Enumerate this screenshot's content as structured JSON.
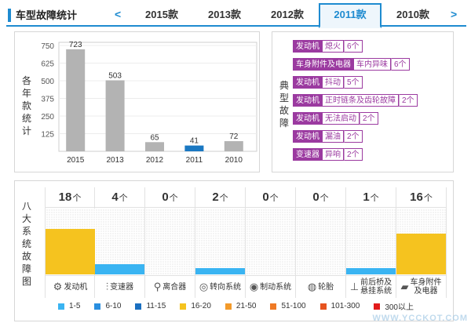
{
  "header": {
    "title": "车型故障统计",
    "prev_arrow": "<",
    "next_arrow": ">",
    "tabs": [
      {
        "label": "2015款",
        "active": false
      },
      {
        "label": "2013款",
        "active": false
      },
      {
        "label": "2012款",
        "active": false
      },
      {
        "label": "2011款",
        "active": true
      },
      {
        "label": "2010款",
        "active": false
      }
    ]
  },
  "chart_panel": {
    "side_label": [
      "各",
      "年",
      "款",
      "统",
      "计"
    ]
  },
  "chart_data": {
    "type": "bar",
    "categories": [
      "2015",
      "2013",
      "2012",
      "2011",
      "2010"
    ],
    "values": [
      723,
      503,
      65,
      41,
      72
    ],
    "highlight_index": 3,
    "highlight_color": "#1a78c2",
    "bar_color": "#b3b3b3",
    "yticks": [
      125,
      250,
      375,
      500,
      625,
      750
    ],
    "ylim": [
      0,
      750
    ],
    "title": "",
    "xlabel": "",
    "ylabel": "各年款统计"
  },
  "typical_panel": {
    "side_label": [
      "典",
      "型",
      "故",
      "障"
    ],
    "items": [
      {
        "tag": "发动机",
        "desc": "熄火",
        "count": "6个"
      },
      {
        "tag": "车身附件及电器",
        "desc": "车内异味",
        "count": "6个"
      },
      {
        "tag": "发动机",
        "desc": "抖动",
        "count": "5个"
      },
      {
        "tag": "发动机",
        "desc": "正时链条及齿轮故障",
        "count": "2个"
      },
      {
        "tag": "发动机",
        "desc": "无法启动",
        "count": "2个"
      },
      {
        "tag": "发动机",
        "desc": "漏油",
        "count": "2个"
      },
      {
        "tag": "变速器",
        "desc": "异响",
        "count": "2个"
      }
    ]
  },
  "systems_panel": {
    "side_label": [
      "八",
      "大",
      "系",
      "统",
      "故",
      "障",
      "图"
    ],
    "unit": "个",
    "systems": [
      {
        "count": "18",
        "value": 18,
        "name": "发动机",
        "icon": "engine-icon",
        "glyph": "⚙",
        "color": "#f5c31f"
      },
      {
        "count": "4",
        "value": 4,
        "name": "变速器",
        "icon": "gearbox-icon",
        "glyph": "⫶",
        "color": "#3ab4f2"
      },
      {
        "count": "0",
        "value": 0,
        "name": "离合器",
        "icon": "clutch-icon",
        "glyph": "⚲",
        "color": "#3ab4f2"
      },
      {
        "count": "2",
        "value": 2,
        "name": "转向系统",
        "icon": "steering-icon",
        "glyph": "◎",
        "color": "#3ab4f2"
      },
      {
        "count": "0",
        "value": 0,
        "name": "制动系统",
        "icon": "brake-icon",
        "glyph": "◉",
        "color": "#3ab4f2"
      },
      {
        "count": "0",
        "value": 0,
        "name": "轮胎",
        "icon": "tire-icon",
        "glyph": "◍",
        "color": "#3ab4f2"
      },
      {
        "count": "1",
        "value": 1,
        "name": "前后桥及悬挂系统",
        "name_lines": [
          "前后桥及",
          "悬挂系统"
        ],
        "icon": "suspension-icon",
        "glyph": "⊥",
        "color": "#3ab4f2"
      },
      {
        "count": "16",
        "value": 16,
        "name": "车身附件及电器",
        "name_lines": [
          "车身附件",
          "及电器"
        ],
        "icon": "body-electric-icon",
        "glyph": "▰",
        "color": "#f5c31f"
      }
    ],
    "legend": [
      {
        "label": "1-5",
        "color": "#3ab4f2"
      },
      {
        "label": "6-10",
        "color": "#2a8fe0"
      },
      {
        "label": "11-15",
        "color": "#1a6fc0"
      },
      {
        "label": "16-20",
        "color": "#f5c31f"
      },
      {
        "label": "21-50",
        "color": "#f39a2a"
      },
      {
        "label": "51-100",
        "color": "#ef7a25"
      },
      {
        "label": "101-300",
        "color": "#e6531f"
      },
      {
        "label": "300以上",
        "color": "#e21b1b"
      }
    ],
    "fill_scale_max": 26
  },
  "watermark": "WWW.YCCKOT.COM"
}
